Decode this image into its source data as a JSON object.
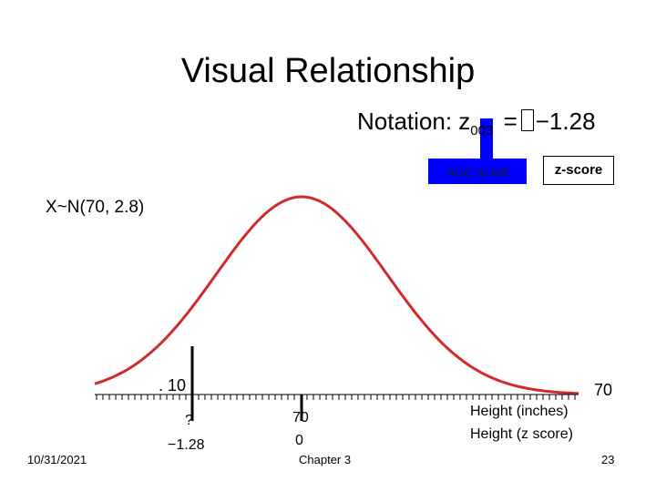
{
  "slide": {
    "title": "Visual Relationship",
    "notation": {
      "prefix": "Notation: z",
      "subscript": "003",
      "equals": "=",
      "value": "−1.28"
    },
    "auc_label": "AUC to left",
    "zscore_label": "z-score",
    "distribution": "X~N(70, 2.8)",
    "tail_area": ". 10",
    "right_value": "70",
    "cutoff_value": "?",
    "cutoff_z": "−1.28",
    "mean_value": "70",
    "mean_z": "0",
    "axis_label_inches": "Height (inches)",
    "axis_label_z": "Height (z score)"
  },
  "footer": {
    "date": "10/31/2021",
    "chapter": "Chapter 3",
    "page": "23"
  },
  "colors": {
    "curve": "#d12a2a",
    "highlight": "#0000ff",
    "axis": "#000000"
  }
}
